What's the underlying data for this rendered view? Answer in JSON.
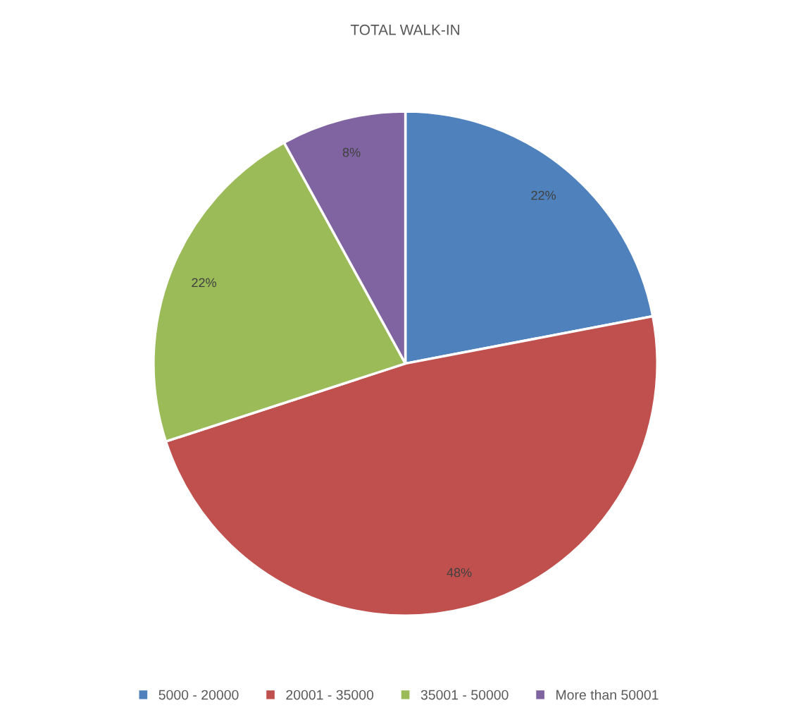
{
  "chart_data": {
    "type": "pie",
    "title": "TOTAL WALK-IN",
    "categories": [
      "5000 - 20000",
      "20001 - 35000",
      "35001 - 50000",
      "More than 50001"
    ],
    "values": [
      22,
      48,
      22,
      8
    ],
    "colors": [
      "#4f81bd",
      "#c0504d",
      "#9bbb59",
      "#8064a2"
    ],
    "value_labels": [
      "22%",
      "48%",
      "22%",
      "8%"
    ],
    "legend": "bottom"
  }
}
